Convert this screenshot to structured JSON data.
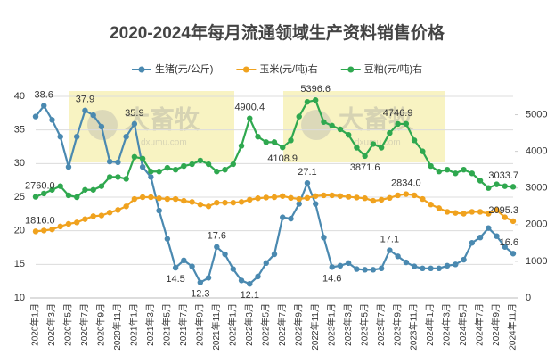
{
  "chart_data": {
    "type": "line",
    "title": "2020-2024年每月流通领域生产资料销售价格",
    "watermark": "大畜牧",
    "watermark_url": "dxumu.com",
    "categories": [
      "2020年1月",
      null,
      "2020年3月",
      null,
      "2020年5月",
      null,
      "2020年7月",
      null,
      "2020年9月",
      null,
      "2020年11月",
      null,
      "2021年1月",
      null,
      "2021年3月",
      null,
      "2021年5月",
      null,
      "2021年7月",
      null,
      "2021年9月",
      null,
      "2021年11月",
      null,
      "2022年1月",
      null,
      "2022年3月",
      null,
      "2022年5月",
      null,
      "2022年7月",
      null,
      "2022年9月",
      null,
      "2022年11月",
      null,
      "2023年1月",
      null,
      "2023年3月",
      null,
      "2023年5月",
      null,
      "2023年7月",
      null,
      "2023年9月",
      null,
      "2023年11月",
      null,
      "2024年1月",
      null,
      "2024年3月",
      null,
      "2024年5月",
      null,
      "2024年7月",
      null,
      "2024年9月",
      null,
      "2024年11月"
    ],
    "ylim": [
      10,
      40
    ],
    "yticks": [
      10,
      15,
      20,
      25,
      30,
      35,
      40
    ],
    "y2lim": [
      0,
      5500
    ],
    "y2ticks": [
      0,
      1000,
      2000,
      3000,
      4000,
      5000
    ],
    "grid": true,
    "legend": "top",
    "series": [
      {
        "name": "生猪(元/公斤)",
        "color": "#4a89b0",
        "values": [
          37,
          38.6,
          36.5,
          34,
          29.5,
          34,
          37.9,
          37.2,
          35.5,
          30.3,
          30.2,
          34,
          35.9,
          29.5,
          28,
          23,
          18.8,
          14.5,
          15.6,
          14.7,
          12.3,
          13,
          17.6,
          16.5,
          14.3,
          12.6,
          12.1,
          13.2,
          15.2,
          16.5,
          22,
          21.8,
          24,
          27.1,
          24,
          19,
          14.6,
          14.8,
          15.2,
          14.3,
          14.2,
          14.2,
          14.4,
          17.1,
          16.2,
          15.3,
          14.7,
          14.4,
          14.4,
          14.4,
          14.8,
          15,
          15.7,
          18.2,
          19,
          20.4,
          19.2,
          17.6,
          16.6
        ],
        "value_labels": [
          null,
          "38.6",
          null,
          null,
          null,
          null,
          "37.9",
          null,
          null,
          null,
          null,
          null,
          "35.9",
          null,
          null,
          null,
          null,
          "14.5",
          null,
          null,
          "12.3",
          null,
          "17.6",
          null,
          null,
          null,
          "12.1",
          null,
          null,
          null,
          null,
          null,
          null,
          "27.1",
          null,
          null,
          "14.6",
          null,
          null,
          null,
          null,
          null,
          null,
          "17.1",
          null,
          null,
          null,
          null,
          null,
          null,
          null,
          null,
          null,
          null,
          null,
          null,
          null,
          null,
          "16.6"
        ]
      },
      {
        "name": "玉米(元/吨)右",
        "color": "#f0a21e",
        "axis": "y2",
        "values": [
          1816,
          1840,
          1870,
          1950,
          2020,
          2060,
          2150,
          2230,
          2250,
          2330,
          2400,
          2500,
          2700,
          2750,
          2750,
          2720,
          2700,
          2700,
          2650,
          2620,
          2550,
          2500,
          2600,
          2600,
          2600,
          2620,
          2680,
          2720,
          2740,
          2750,
          2780,
          2730,
          2700,
          2730,
          2780,
          2800,
          2800,
          2780,
          2760,
          2740,
          2720,
          2650,
          2680,
          2730,
          2800,
          2834,
          2800,
          2700,
          2550,
          2450,
          2350,
          2320,
          2300,
          2350,
          2350,
          2300,
          2400,
          2200,
          2095.3
        ],
        "value_labels": [
          "1816.0",
          null,
          null,
          null,
          null,
          null,
          null,
          null,
          null,
          null,
          null,
          null,
          null,
          null,
          null,
          null,
          null,
          null,
          null,
          null,
          null,
          null,
          null,
          null,
          null,
          null,
          null,
          null,
          null,
          null,
          null,
          null,
          null,
          null,
          null,
          null,
          null,
          null,
          null,
          null,
          null,
          null,
          null,
          null,
          null,
          "2834.0",
          null,
          null,
          null,
          null,
          null,
          null,
          null,
          null,
          null,
          null,
          null,
          null,
          "2095.3"
        ]
      },
      {
        "name": "豆粕(元/吨)右",
        "color": "#2fa84f",
        "axis": "y2",
        "values": [
          2760,
          2850,
          2950,
          3050,
          2800,
          2750,
          2950,
          2950,
          3050,
          3300,
          3300,
          3250,
          3850,
          3800,
          3450,
          3450,
          3550,
          3500,
          3600,
          3650,
          3750,
          3650,
          3450,
          3500,
          3650,
          4150,
          4900.4,
          4400,
          4250,
          4250,
          4108.9,
          4300,
          4950,
          5350,
          5396.6,
          4800,
          4700,
          4600,
          4450,
          4100,
          3871.6,
          4200,
          4100,
          4500,
          4746.9,
          4750,
          4300,
          4000,
          3600,
          3450,
          3500,
          3400,
          3500,
          3400,
          3200,
          3000,
          3100,
          3050,
          3033.7
        ],
        "value_labels": [
          "2760.0",
          null,
          null,
          null,
          null,
          null,
          null,
          null,
          null,
          null,
          null,
          null,
          null,
          null,
          null,
          null,
          null,
          null,
          null,
          null,
          null,
          null,
          null,
          null,
          null,
          null,
          "4900.4",
          null,
          null,
          null,
          "4108.9",
          null,
          null,
          null,
          "5396.6",
          null,
          null,
          null,
          null,
          null,
          "3871.6",
          null,
          null,
          null,
          "4746.9",
          null,
          null,
          null,
          null,
          null,
          null,
          null,
          null,
          null,
          null,
          null,
          null,
          null,
          "3033.7"
        ]
      }
    ]
  }
}
